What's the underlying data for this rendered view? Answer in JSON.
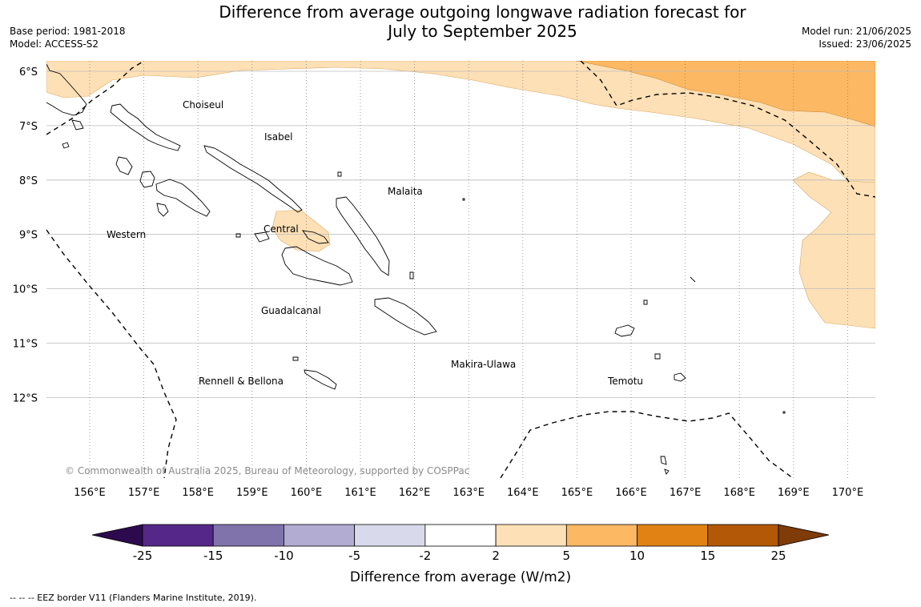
{
  "title_line1": "Difference from average outgoing longwave radiation forecast for",
  "title_line2": "July to September 2025",
  "meta": {
    "base_period": "Base period: 1981-2018",
    "model": "Model: ACCESS-S2",
    "model_run": "Model run: 21/06/2025",
    "issued": "Issued: 23/06/2025"
  },
  "map": {
    "lat_labels": [
      "6°S",
      "7°S",
      "8°S",
      "9°S",
      "10°S",
      "11°S",
      "12°S"
    ],
    "lon_labels": [
      "156°E",
      "157°E",
      "158°E",
      "159°E",
      "160°E",
      "161°E",
      "162°E",
      "163°E",
      "164°E",
      "165°E",
      "166°E",
      "167°E",
      "168°E",
      "169°E",
      "170°E"
    ],
    "regions": [
      "Choiseul",
      "Isabel",
      "Malaita",
      "Western",
      "Central",
      "Guadalcanal",
      "Makira-Ulawa",
      "Rennell & Bellona",
      "Temotu"
    ],
    "copyright": "© Commonwealth of Australia 2025, Bureau of Meteorology, supported by COSPPac"
  },
  "colorbar": {
    "ticks": [
      "-25",
      "-15",
      "-10",
      "-5",
      "-2",
      "2",
      "5",
      "10",
      "15",
      "25"
    ],
    "colors": [
      "#2d0a4e",
      "#542788",
      "#8073ac",
      "#b2abd2",
      "#d8daeb",
      "#ffffff",
      "#fee0b6",
      "#fdb863",
      "#e08214",
      "#b35806",
      "#7f3b08"
    ],
    "title": "Difference from average (W/m2)"
  },
  "footnote": "--  --  -- EEZ border V11 (Flanders Marine Institute, 2019)."
}
